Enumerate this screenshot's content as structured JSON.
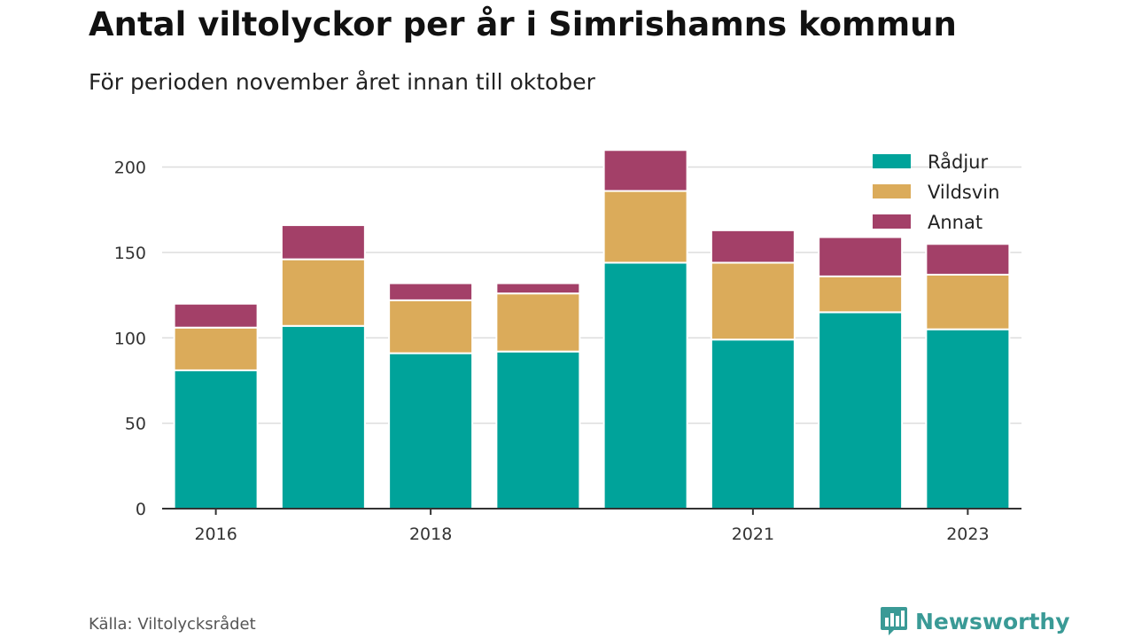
{
  "header": {
    "title": "Antal viltolyckor per år i Simrishamns kommun",
    "subtitle": "För perioden november året innan till oktober"
  },
  "footer": {
    "source": "Källa: Viltolycksrådet",
    "brand": "Newsworthy"
  },
  "colors": {
    "radjur": "#00a39a",
    "vildsvin": "#dbab5a",
    "annat": "#a34068",
    "grid": "#dddddd",
    "axis": "#333333",
    "brand": "#3a9a96"
  },
  "icons": {
    "brand": "newsworthy-logo-icon"
  },
  "chart_data": {
    "type": "bar",
    "stacked": true,
    "categories": [
      "2016",
      "2017",
      "2018",
      "2019",
      "2020",
      "2021",
      "2022",
      "2023"
    ],
    "x_tick_labels": [
      "2016",
      "",
      "2018",
      "",
      "",
      "2021",
      "",
      "2023"
    ],
    "series": [
      {
        "name": "Rådjur",
        "values": [
          81,
          107,
          91,
          92,
          144,
          99,
          115,
          105
        ]
      },
      {
        "name": "Vildsvin",
        "values": [
          25,
          39,
          31,
          34,
          42,
          45,
          21,
          32
        ]
      },
      {
        "name": "Annat",
        "values": [
          14,
          20,
          10,
          6,
          24,
          19,
          23,
          18
        ]
      }
    ],
    "title": "Antal viltolyckor per år i Simrishamns kommun",
    "subtitle": "För perioden november året innan till oktober",
    "xlabel": "",
    "ylabel": "",
    "ylim": [
      0,
      220
    ],
    "yticks": [
      0,
      50,
      100,
      150,
      200
    ],
    "grid": true,
    "legend": "top-right"
  }
}
